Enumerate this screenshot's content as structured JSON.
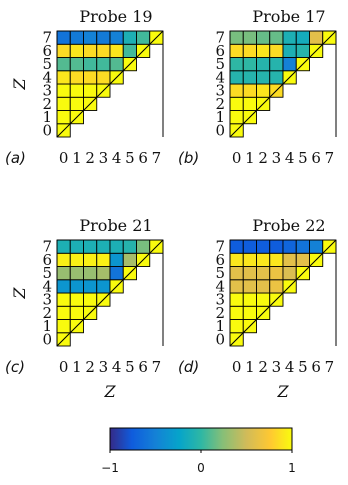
{
  "figure": {
    "z_label": "Z",
    "colorbar": {
      "min": -1,
      "max": 1,
      "tick_labels": [
        "−1",
        "0",
        "1"
      ]
    }
  },
  "chart_data": [
    {
      "type": "heatmap",
      "panel_label": "(a)",
      "title": "Probe 19",
      "xlabel": "",
      "ylabel": "Z",
      "x_ticks": [
        "0",
        "1",
        "2",
        "3",
        "4",
        "5",
        "6",
        "7"
      ],
      "y_ticks": [
        "0",
        "1",
        "2",
        "3",
        "4",
        "5",
        "6",
        "7"
      ],
      "clim": [
        -1,
        1
      ],
      "rows": [
        [
          1
        ],
        [
          1,
          1
        ],
        [
          1,
          1,
          1
        ],
        [
          1,
          1,
          1,
          1
        ],
        [
          0.9,
          0.85,
          0.85,
          0.85,
          1
        ],
        [
          0.1,
          0.1,
          0.05,
          0.05,
          0.1,
          1
        ],
        [
          0.85,
          0.9,
          0.85,
          0.85,
          0.9,
          0.05,
          1
        ],
        [
          -0.6,
          -0.55,
          -0.5,
          -0.55,
          -0.5,
          -0.1,
          0.05,
          1
        ]
      ]
    },
    {
      "type": "heatmap",
      "panel_label": "(b)",
      "title": "Probe 17",
      "xlabel": "",
      "ylabel": "",
      "x_ticks": [
        "0",
        "1",
        "2",
        "3",
        "4",
        "5",
        "6",
        "7"
      ],
      "y_ticks": [
        "0",
        "1",
        "2",
        "3",
        "4",
        "5",
        "6",
        "7"
      ],
      "clim": [
        -1,
        1
      ],
      "rows": [
        [
          1
        ],
        [
          1,
          1
        ],
        [
          1,
          1,
          1
        ],
        [
          0.85,
          0.85,
          0.9,
          0.85
        ],
        [
          -0.05,
          -0.05,
          -0.05,
          -0.05,
          1
        ],
        [
          0.0,
          0.0,
          -0.05,
          -0.05,
          -0.5,
          1
        ],
        [
          0.85,
          0.85,
          0.9,
          0.85,
          -0.1,
          -0.05,
          1
        ],
        [
          0.2,
          0.2,
          0.15,
          0.15,
          -0.1,
          -0.15,
          0.6,
          1
        ]
      ]
    },
    {
      "type": "heatmap",
      "panel_label": "(c)",
      "title": "Probe 21",
      "xlabel": "Z",
      "ylabel": "Z",
      "x_ticks": [
        "0",
        "1",
        "2",
        "3",
        "4",
        "5",
        "6",
        "7"
      ],
      "y_ticks": [
        "0",
        "1",
        "2",
        "3",
        "4",
        "5",
        "6",
        "7"
      ],
      "clim": [
        -1,
        1
      ],
      "rows": [
        [
          1
        ],
        [
          1,
          1
        ],
        [
          1,
          1,
          1
        ],
        [
          1,
          1,
          1,
          1
        ],
        [
          -0.35,
          -0.35,
          -0.35,
          -0.35,
          1
        ],
        [
          0.3,
          0.3,
          0.3,
          0.35,
          -0.6,
          1
        ],
        [
          0.95,
          0.95,
          0.95,
          0.95,
          -0.35,
          0.35,
          1
        ],
        [
          -0.1,
          -0.1,
          -0.1,
          -0.1,
          -0.1,
          -0.05,
          0.2,
          1
        ]
      ]
    },
    {
      "type": "heatmap",
      "panel_label": "(d)",
      "title": "Probe 22",
      "xlabel": "Z",
      "ylabel": "",
      "x_ticks": [
        "0",
        "1",
        "2",
        "3",
        "4",
        "5",
        "6",
        "7"
      ],
      "y_ticks": [
        "0",
        "1",
        "2",
        "3",
        "4",
        "5",
        "6",
        "7"
      ],
      "clim": [
        -1,
        1
      ],
      "rows": [
        [
          1
        ],
        [
          1,
          1
        ],
        [
          1,
          1,
          1
        ],
        [
          1,
          1,
          1,
          1
        ],
        [
          0.6,
          0.6,
          0.6,
          0.65,
          1
        ],
        [
          0.6,
          0.6,
          0.6,
          0.65,
          0.55,
          1
        ],
        [
          0.9,
          0.9,
          0.9,
          0.9,
          0.6,
          0.6,
          1
        ],
        [
          -0.75,
          -0.75,
          -0.75,
          -0.75,
          -0.7,
          -0.6,
          -0.5,
          1
        ]
      ]
    }
  ]
}
